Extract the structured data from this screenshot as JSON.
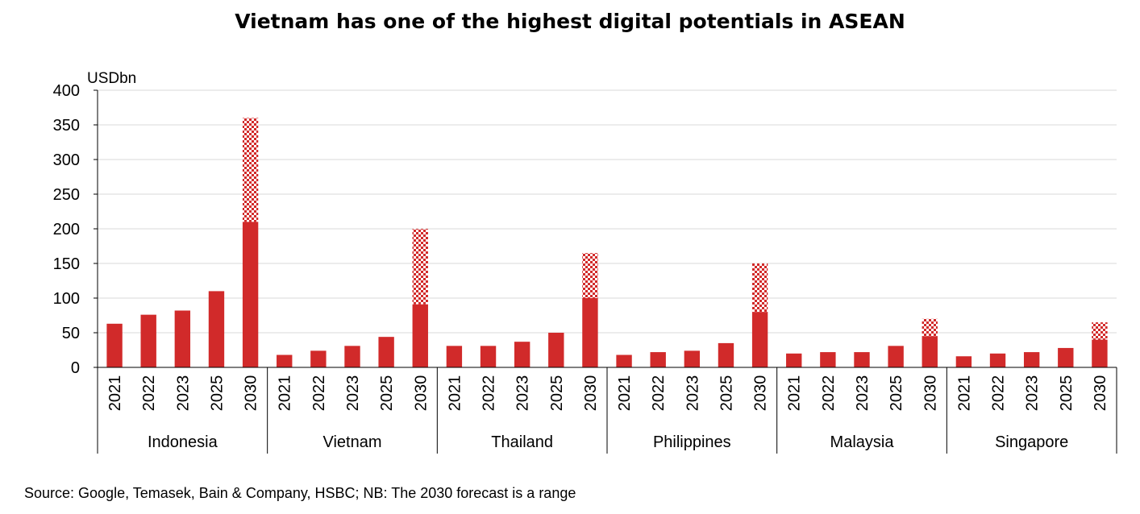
{
  "chart_data": {
    "type": "bar",
    "title": "Vietnam has one of the highest digital potentials in ASEAN",
    "ylabel": "USDbn",
    "ylim": [
      0,
      400
    ],
    "yticks": [
      0,
      50,
      100,
      150,
      200,
      250,
      300,
      350,
      400
    ],
    "grid": true,
    "colors": {
      "bar": "#d12a2a",
      "range_pattern": "#d12a2a",
      "grid": "#d9d9d9"
    },
    "groups": [
      {
        "name": "Indonesia",
        "years": [
          "2021",
          "2022",
          "2023",
          "2025",
          "2030"
        ],
        "values": [
          63,
          76,
          82,
          110,
          210
        ],
        "range_high_2030": 360
      },
      {
        "name": "Vietnam",
        "years": [
          "2021",
          "2022",
          "2023",
          "2025",
          "2030"
        ],
        "values": [
          18,
          24,
          31,
          44,
          91
        ],
        "range_high_2030": 200
      },
      {
        "name": "Thailand",
        "years": [
          "2021",
          "2022",
          "2023",
          "2025",
          "2030"
        ],
        "values": [
          31,
          31,
          37,
          50,
          100
        ],
        "range_high_2030": 165
      },
      {
        "name": "Philippines",
        "years": [
          "2021",
          "2022",
          "2023",
          "2025",
          "2030"
        ],
        "values": [
          18,
          22,
          24,
          35,
          80
        ],
        "range_high_2030": 150
      },
      {
        "name": "Malaysia",
        "years": [
          "2021",
          "2022",
          "2023",
          "2025",
          "2030"
        ],
        "values": [
          20,
          22,
          22,
          31,
          45
        ],
        "range_high_2030": 70
      },
      {
        "name": "Singapore",
        "years": [
          "2021",
          "2022",
          "2023",
          "2025",
          "2030"
        ],
        "values": [
          16,
          20,
          22,
          28,
          40
        ],
        "range_high_2030": 65
      }
    ]
  },
  "source": "Source: Google, Temasek, Bain & Company, HSBC; NB: The 2030 forecast is a range"
}
